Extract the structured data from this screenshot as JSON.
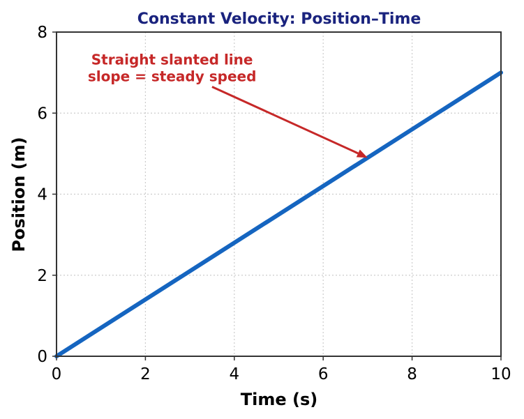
{
  "chart_data": {
    "type": "line",
    "title": "Constant Velocity: Position–Time",
    "xlabel": "Time (s)",
    "ylabel": "Position (m)",
    "xlim": [
      0,
      10
    ],
    "ylim": [
      0,
      8
    ],
    "xticks": [
      0,
      2,
      4,
      6,
      8,
      10
    ],
    "yticks": [
      0,
      2,
      4,
      6,
      8
    ],
    "xtick_labels": [
      "0",
      "2",
      "4",
      "6",
      "8",
      "10"
    ],
    "ytick_labels": [
      "0",
      "2",
      "4",
      "6",
      "8"
    ],
    "grid": true,
    "series": [
      {
        "x": [
          0,
          10
        ],
        "y": [
          0,
          7
        ],
        "color": "#1565c0"
      }
    ],
    "annotation": {
      "lines": [
        "Straight slanted line",
        "slope = steady speed"
      ],
      "color": "#c62828",
      "text_at": [
        2.6,
        7.1
      ],
      "arrow_tail": [
        3.5,
        6.65
      ],
      "arrow_head": [
        7,
        4.9
      ]
    },
    "title_color": "#1a237e"
  }
}
